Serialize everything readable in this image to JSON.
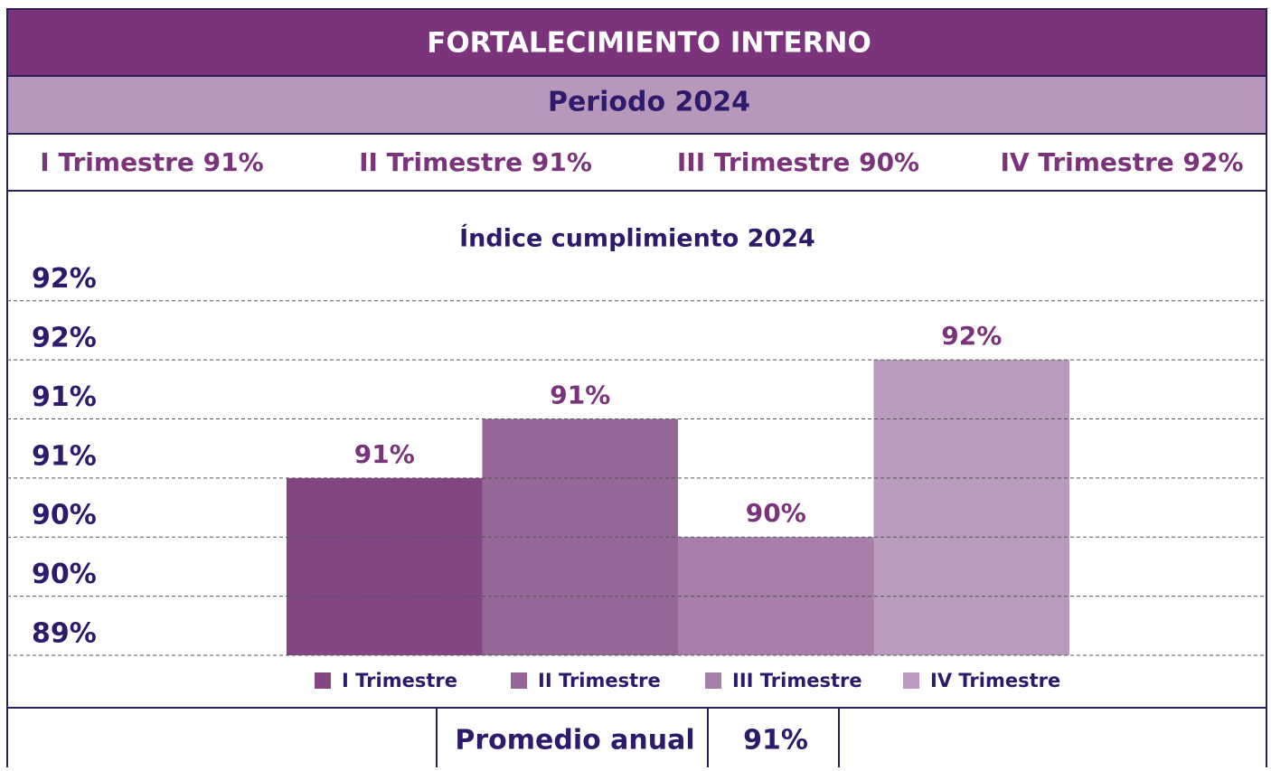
{
  "header": {
    "title": "FORTALECIMIENTO INTERNO",
    "period": "Periodo 2024"
  },
  "quarters": [
    "I Trimestre 91%",
    "II Trimestre 91%",
    "III Trimestre 90%",
    "IV Trimestre 92%"
  ],
  "chart_data": {
    "type": "bar",
    "title": "Índice cumplimiento 2024",
    "categories": [
      "I Trimestre",
      "II Trimestre",
      "III Trimestre",
      "IV Trimestre"
    ],
    "values": [
      90.5,
      91.0,
      90.0,
      91.5
    ],
    "value_labels": [
      "91%",
      "91%",
      "90%",
      "92%"
    ],
    "colors": [
      "#834683",
      "#956797",
      "#a77fa9",
      "#b99bbd"
    ],
    "ylim": [
      89,
      92.25
    ],
    "yticks": [
      {
        "value": 89,
        "label": "89%"
      },
      {
        "value": 89.5,
        "label": "90%"
      },
      {
        "value": 90,
        "label": "90%"
      },
      {
        "value": 90.5,
        "label": "91%"
      },
      {
        "value": 91,
        "label": "91%"
      },
      {
        "value": 91.5,
        "label": "92%"
      },
      {
        "value": 92,
        "label": "92%"
      }
    ],
    "grid": true,
    "legend": "bottom"
  },
  "footer": {
    "label": "Promedio anual",
    "value": "91%"
  }
}
